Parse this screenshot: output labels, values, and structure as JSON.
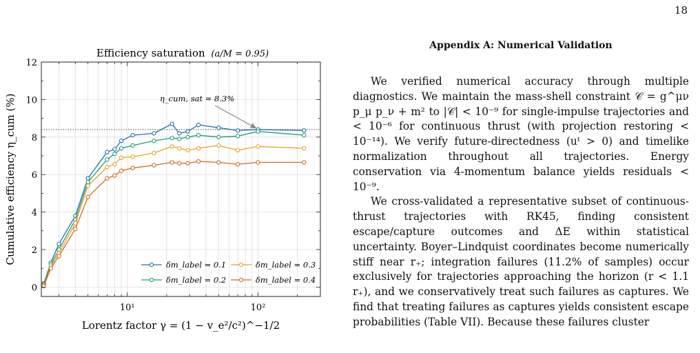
{
  "page": {
    "number": "18"
  },
  "figure": {
    "title_prefix": "Efficiency saturation",
    "title_param": "(a/M = 0.95)",
    "annotation": "η_cum, sat ≈ 8.3%",
    "ylabel": "Cumulative efficiency η_cum (%)",
    "xlabel": "Lorentz factor γ = (1 − v_e²/c²)^−1/2",
    "colors": {
      "s01": "#1f6fa8",
      "s02": "#1a9e7a",
      "s03": "#e8a01f",
      "s04": "#d2691e",
      "grid": "#dddddd",
      "arrow": "#8a8a8a"
    }
  },
  "chart_data": {
    "type": "line",
    "title": "Efficiency saturation (a/M = 0.95)",
    "xlabel": "Lorentz factor γ = (1 − v_e²/c²)^−1/2",
    "ylabel": "Cumulative efficiency η_cum (%)",
    "xscale": "log",
    "xlim": [
      2.2,
      300
    ],
    "ylim": [
      -0.5,
      12
    ],
    "xticks": [
      "10¹",
      "10²"
    ],
    "yticks": [
      0,
      2,
      4,
      6,
      8,
      10,
      12
    ],
    "grid": true,
    "legend": "lower-right",
    "reference_line": {
      "y": 8.4,
      "style": "dotted"
    },
    "annotation": {
      "text": "η_cum, sat ≈ 8.3%",
      "points_to": [
        100,
        8.35
      ]
    },
    "series": [
      {
        "name": "δm_label = 0.1",
        "x": [
          2.3,
          2.6,
          3,
          4,
          5,
          7,
          8,
          9,
          11,
          16,
          22,
          25,
          29,
          35,
          50,
          70,
          100,
          225
        ],
        "y": [
          0.2,
          1.3,
          2.3,
          3.8,
          5.8,
          7.2,
          7.35,
          7.8,
          8.1,
          8.2,
          8.7,
          8.2,
          8.3,
          8.65,
          8.5,
          8.35,
          8.4,
          8.35
        ]
      },
      {
        "name": "δm_label = 0.2",
        "x": [
          2.3,
          2.6,
          3,
          4,
          5,
          7,
          8,
          9,
          11,
          16,
          22,
          25,
          29,
          35,
          50,
          70,
          100,
          225
        ],
        "y": [
          0.15,
          1.2,
          2.0,
          3.6,
          5.6,
          6.8,
          7.1,
          7.4,
          7.55,
          7.8,
          7.95,
          7.9,
          8.0,
          8.1,
          8.0,
          8.05,
          8.3,
          8.1
        ]
      },
      {
        "name": "δm_label = 0.3",
        "x": [
          2.3,
          2.6,
          3,
          4,
          5,
          7,
          8,
          9,
          11,
          16,
          22,
          25,
          29,
          35,
          50,
          70,
          100,
          225
        ],
        "y": [
          0.1,
          1.1,
          1.8,
          3.4,
          5.4,
          6.4,
          6.55,
          6.9,
          6.95,
          7.15,
          7.5,
          7.4,
          7.3,
          7.4,
          7.55,
          7.3,
          7.5,
          7.4
        ]
      },
      {
        "name": "δm_label = 0.4",
        "x": [
          2.3,
          2.6,
          3,
          4,
          5,
          7,
          8,
          9,
          11,
          16,
          22,
          25,
          29,
          35,
          50,
          70,
          100,
          225
        ],
        "y": [
          0.05,
          1.0,
          1.65,
          3.1,
          4.8,
          5.8,
          5.95,
          6.2,
          6.35,
          6.5,
          6.65,
          6.6,
          6.6,
          6.7,
          6.65,
          6.55,
          6.65,
          6.65
        ]
      }
    ]
  },
  "appendix": {
    "title": "Appendix A: Numerical Validation",
    "paragraphs": [
      "We verified numerical accuracy through multiple diagnostics. We maintain the mass-shell constraint 𝒞 = g^μν p_μ p_ν + m² to |𝒞| < 10⁻⁹ for single-impulse trajectories and < 10⁻⁶ for continuous thrust (with projection restoring < 10⁻¹⁴). We verify future-directedness (uᵗ > 0) and timelike normalization throughout all trajectories. Energy conservation via 4-momentum balance yields residuals < 10⁻⁹.",
      "We cross-validated a representative subset of continuous-thrust trajectories with RK45, finding consistent escape/capture outcomes and ΔE within statistical uncertainty. Boyer–Lindquist coordinates become numerically stiff near r₊; integration failures (11.2% of samples) occur exclusively for trajectories approaching the horizon (r < 1.1 r₊), and we conservatively treat such failures as captures. We find that treating failures as captures yields consistent escape probabilities (Table VII). Because these failures cluster"
    ]
  }
}
